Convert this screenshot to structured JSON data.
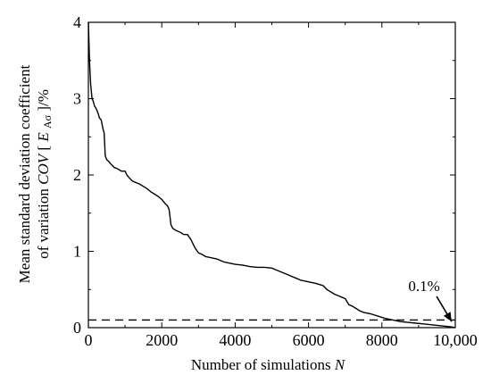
{
  "chart_data": {
    "type": "line",
    "title": "",
    "xlabel": "Number of simulations",
    "xlabel_var": "N",
    "ylabel_line1": "Mean standard deviation coefficient",
    "ylabel_line2_pre": "of variation ",
    "ylabel_line2_cov": "COV",
    "ylabel_line2_open": " [",
    "ylabel_line2_E": "E",
    "ylabel_line2_sub": "Aσ",
    "ylabel_line2_post": "]/%",
    "xlim": [
      0,
      10000
    ],
    "ylim": [
      0,
      4
    ],
    "xticks": [
      0,
      2000,
      4000,
      6000,
      8000,
      10000
    ],
    "xtick_labels": [
      "0",
      "2000",
      "4000",
      "6000",
      "8000",
      "10,000"
    ],
    "yticks": [
      0,
      1,
      2,
      3,
      4
    ],
    "ytick_labels": [
      "0",
      "1",
      "2",
      "3",
      "4"
    ],
    "grid": false,
    "series": [
      {
        "style": "solid",
        "color": "#000000",
        "x": [
          0,
          10,
          30,
          60,
          100,
          130,
          170,
          200,
          230,
          270,
          300,
          350,
          400,
          430,
          460,
          500,
          550,
          600,
          700,
          800,
          900,
          1000,
          1050,
          1100,
          1200,
          1300,
          1400,
          1500,
          1600,
          1700,
          1800,
          1900,
          2000,
          2050,
          2100,
          2150,
          2200,
          2250,
          2300,
          2400,
          2500,
          2600,
          2700,
          2800,
          2900,
          3000,
          3100,
          3200,
          3300,
          3400,
          3500,
          3600,
          3700,
          3800,
          3900,
          4000,
          4200,
          4400,
          4600,
          4800,
          5000,
          5200,
          5400,
          5600,
          5800,
          6000,
          6200,
          6400,
          6500,
          6600,
          6700,
          6800,
          6900,
          7000,
          7100,
          7200,
          7300,
          7400,
          7500,
          7700,
          7900,
          8100,
          8300,
          8500,
          8700,
          8900,
          9100,
          9300,
          9500,
          9700,
          9900,
          10000
        ],
        "y": [
          4.0,
          3.85,
          3.5,
          3.2,
          3.0,
          2.97,
          2.9,
          2.88,
          2.85,
          2.8,
          2.75,
          2.72,
          2.6,
          2.55,
          2.25,
          2.2,
          2.18,
          2.15,
          2.1,
          2.08,
          2.05,
          2.05,
          2.0,
          1.97,
          1.92,
          1.9,
          1.88,
          1.85,
          1.82,
          1.78,
          1.75,
          1.72,
          1.68,
          1.65,
          1.62,
          1.6,
          1.55,
          1.35,
          1.3,
          1.27,
          1.25,
          1.22,
          1.22,
          1.15,
          1.05,
          0.98,
          0.96,
          0.93,
          0.92,
          0.91,
          0.9,
          0.88,
          0.86,
          0.85,
          0.84,
          0.83,
          0.82,
          0.8,
          0.79,
          0.79,
          0.78,
          0.74,
          0.7,
          0.66,
          0.62,
          0.6,
          0.58,
          0.55,
          0.5,
          0.47,
          0.44,
          0.42,
          0.4,
          0.38,
          0.3,
          0.28,
          0.25,
          0.22,
          0.2,
          0.18,
          0.15,
          0.12,
          0.1,
          0.08,
          0.07,
          0.06,
          0.05,
          0.04,
          0.03,
          0.02,
          0.01,
          0.0
        ]
      },
      {
        "style": "dashed",
        "color": "#000000",
        "x": [
          0,
          10000
        ],
        "y": [
          0.1,
          0.1
        ]
      }
    ],
    "annotations": [
      {
        "text": "0.1%",
        "x": 9150,
        "y": 0.55,
        "arrow_to_x": 9900,
        "arrow_to_y": 0.08
      }
    ]
  }
}
